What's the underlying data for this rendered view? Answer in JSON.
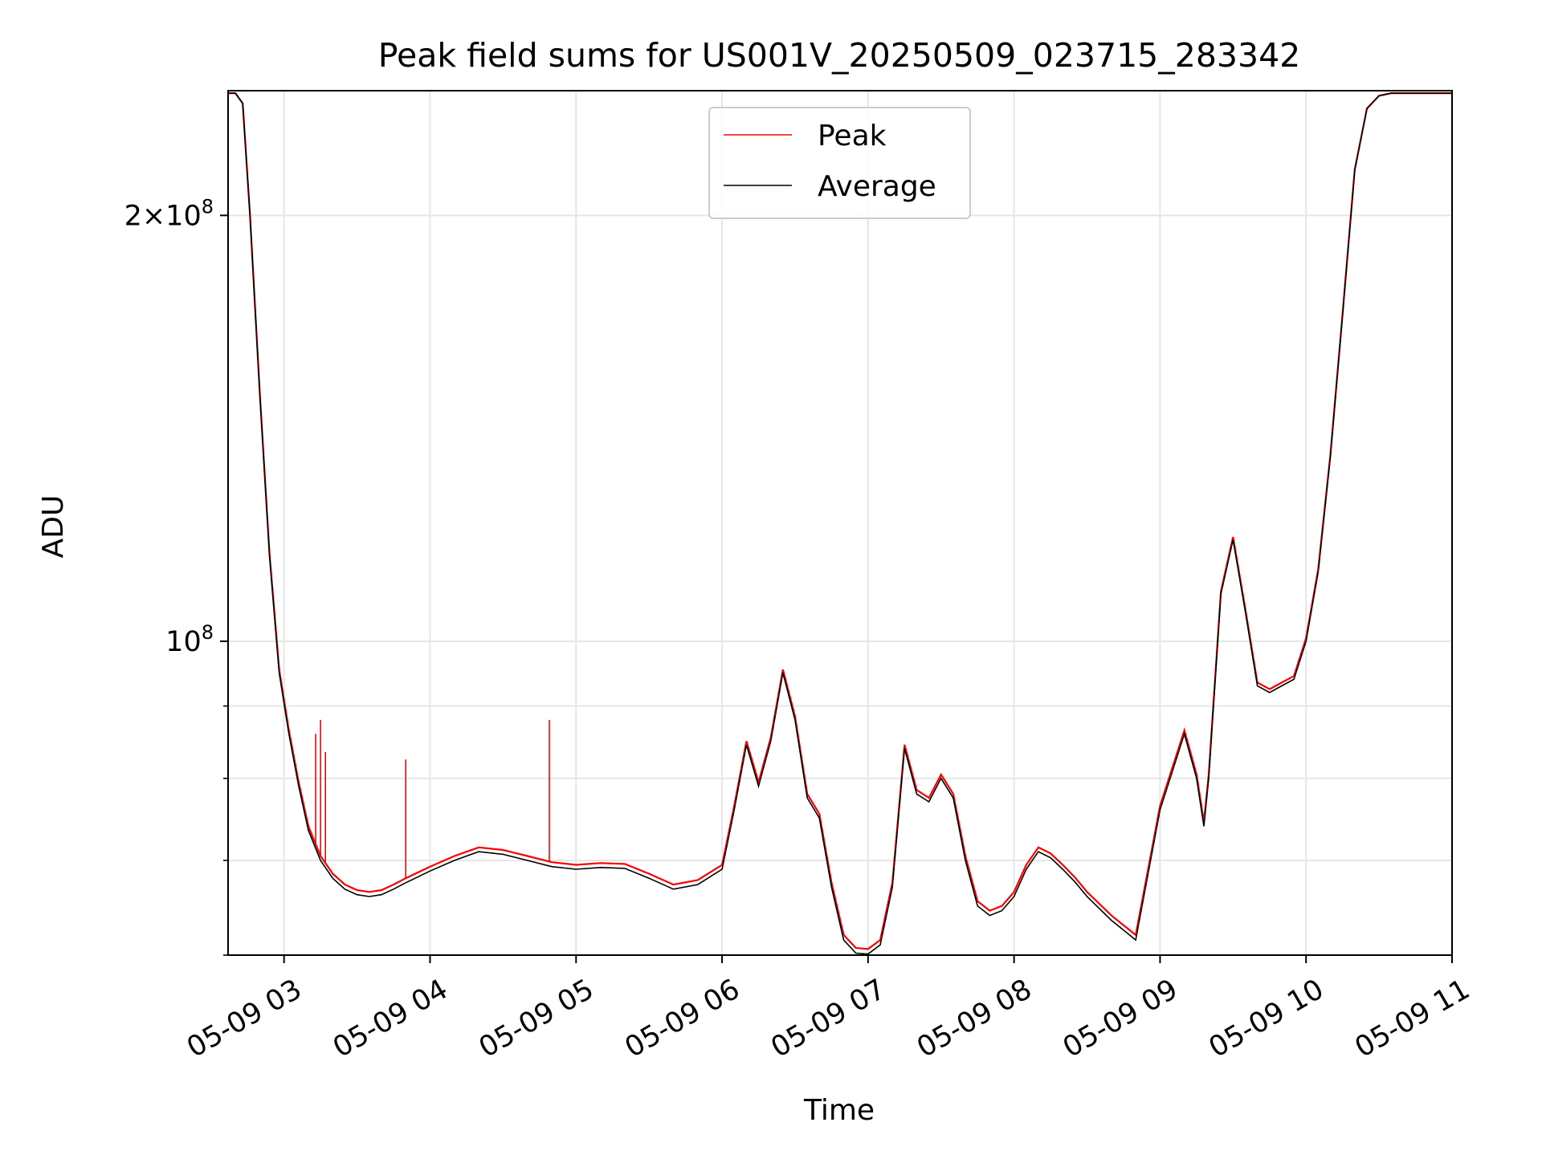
{
  "chart_data": {
    "type": "line",
    "title": "Peak field sums for US001V_20250509_023715_283342",
    "xlabel": "Time",
    "ylabel": "ADU",
    "x_axis": {
      "kind": "datetime",
      "range": [
        "2025-05-09 02:37",
        "2025-05-09 11:00"
      ],
      "ticks": [
        "2025-05-09 03:00",
        "2025-05-09 04:00",
        "2025-05-09 05:00",
        "2025-05-09 06:00",
        "2025-05-09 07:00",
        "2025-05-09 08:00",
        "2025-05-09 09:00",
        "2025-05-09 10:00",
        "2025-05-09 11:00"
      ],
      "tick_labels": [
        "05-09 03",
        "05-09 04",
        "05-09 05",
        "05-09 06",
        "05-09 07",
        "05-09 08",
        "05-09 09",
        "05-09 10",
        "05-09 11"
      ]
    },
    "y_axis": {
      "scale": "log",
      "range": [
        60000000,
        245000000
      ],
      "major_ticks": [
        100000000,
        200000000
      ],
      "major_labels": [
        "10^8",
        "2×10^8"
      ],
      "minor_ticks": [
        60000000,
        70000000,
        80000000,
        90000000
      ]
    },
    "grid": true,
    "legend": {
      "placement": "upper center",
      "entries": [
        "Peak",
        "Average"
      ]
    },
    "series": [
      {
        "name": "Average",
        "color": "#000000",
        "x": [
          "02:37",
          "02:40",
          "02:43",
          "02:46",
          "02:50",
          "02:54",
          "02:58",
          "03:02",
          "03:06",
          "03:10",
          "03:15",
          "03:20",
          "03:25",
          "03:30",
          "03:35",
          "03:40",
          "03:45",
          "03:50",
          "04:00",
          "04:10",
          "04:20",
          "04:30",
          "04:40",
          "04:50",
          "05:00",
          "05:10",
          "05:20",
          "05:30",
          "05:40",
          "05:50",
          "06:00",
          "06:05",
          "06:10",
          "06:15",
          "06:20",
          "06:25",
          "06:30",
          "06:35",
          "06:40",
          "06:45",
          "06:50",
          "06:55",
          "07:00",
          "07:05",
          "07:10",
          "07:15",
          "07:20",
          "07:25",
          "07:30",
          "07:35",
          "07:40",
          "07:45",
          "07:50",
          "07:55",
          "08:00",
          "08:05",
          "08:10",
          "08:15",
          "08:20",
          "08:25",
          "08:30",
          "08:40",
          "08:50",
          "09:00",
          "09:10",
          "09:15",
          "09:18",
          "09:20",
          "09:25",
          "09:30",
          "09:35",
          "09:40",
          "09:45",
          "09:50",
          "09:55",
          "10:00",
          "10:05",
          "10:10",
          "10:15",
          "10:20",
          "10:25",
          "10:30",
          "10:35",
          "10:40",
          "10:45",
          "10:50",
          "11:00"
        ],
        "y": [
          244000000,
          244000000,
          240000000,
          200000000,
          150000000,
          115000000,
          95000000,
          86000000,
          79000000,
          73500000,
          70000000,
          68000000,
          66800000,
          66200000,
          66000000,
          66200000,
          66800000,
          67500000,
          68800000,
          70000000,
          71000000,
          70700000,
          70000000,
          69300000,
          69000000,
          69200000,
          69100000,
          68000000,
          66800000,
          67300000,
          69000000,
          76000000,
          84500000,
          79000000,
          85000000,
          95000000,
          88000000,
          77500000,
          75000000,
          67000000,
          61500000,
          60200000,
          60100000,
          61000000,
          67000000,
          84000000,
          78000000,
          77000000,
          80000000,
          77500000,
          70000000,
          65000000,
          64000000,
          64500000,
          66000000,
          69000000,
          71000000,
          70300000,
          69000000,
          67600000,
          66000000,
          63500000,
          61500000,
          76000000,
          86000000,
          80000000,
          74000000,
          80000000,
          108000000,
          118000000,
          105000000,
          93000000,
          92000000,
          93000000,
          94000000,
          100000000,
          112000000,
          135000000,
          170000000,
          215000000,
          238000000,
          243000000,
          244000000,
          244000000,
          244000000,
          244000000,
          244000000
        ]
      },
      {
        "name": "Peak",
        "color": "#ff0000",
        "x": [
          "02:37",
          "02:40",
          "02:43",
          "02:46",
          "02:50",
          "02:54",
          "02:58",
          "03:02",
          "03:06",
          "03:10",
          "03:15",
          "03:20",
          "03:25",
          "03:30",
          "03:35",
          "03:40",
          "03:45",
          "03:50",
          "04:00",
          "04:10",
          "04:20",
          "04:30",
          "04:40",
          "04:50",
          "05:00",
          "05:10",
          "05:20",
          "05:30",
          "05:40",
          "05:50",
          "06:00",
          "06:05",
          "06:10",
          "06:15",
          "06:20",
          "06:25",
          "06:30",
          "06:35",
          "06:40",
          "06:45",
          "06:50",
          "06:55",
          "07:00",
          "07:05",
          "07:10",
          "07:15",
          "07:20",
          "07:25",
          "07:30",
          "07:35",
          "07:40",
          "07:45",
          "07:50",
          "07:55",
          "08:00",
          "08:05",
          "08:10",
          "08:15",
          "08:20",
          "08:25",
          "08:30",
          "08:40",
          "08:50",
          "09:00",
          "09:10",
          "09:15",
          "09:18",
          "09:20",
          "09:25",
          "09:30",
          "09:35",
          "09:40",
          "09:45",
          "09:50",
          "09:55",
          "10:00",
          "10:05",
          "10:10",
          "10:15",
          "10:20",
          "10:25",
          "10:30",
          "10:35",
          "10:40",
          "10:45",
          "10:50",
          "11:00"
        ],
        "y": [
          244000000,
          244000000,
          240000000,
          200000000,
          150000000,
          115500000,
          95500000,
          86500000,
          79500000,
          74000000,
          70500000,
          68500000,
          67300000,
          66700000,
          66500000,
          66700000,
          67300000,
          68000000,
          69300000,
          70500000,
          71500000,
          71200000,
          70500000,
          69800000,
          69500000,
          69700000,
          69600000,
          68500000,
          67300000,
          67800000,
          69500000,
          76500000,
          85000000,
          79500000,
          85500000,
          95500000,
          88500000,
          78000000,
          75500000,
          67500000,
          62000000,
          60700000,
          60600000,
          61500000,
          67500000,
          84500000,
          78500000,
          77500000,
          80500000,
          78000000,
          70500000,
          65500000,
          64500000,
          65000000,
          66500000,
          69500000,
          71500000,
          70800000,
          69500000,
          68100000,
          66500000,
          64000000,
          62000000,
          76500000,
          86500000,
          80500000,
          74500000,
          80500000,
          108500000,
          118500000,
          105500000,
          93500000,
          92500000,
          93500000,
          94500000,
          100500000,
          112500000,
          135500000,
          170500000,
          215500000,
          238000000,
          243000000,
          244000000,
          244000000,
          244000000,
          244000000,
          244000000
        ],
        "spikes": [
          {
            "x": "03:13",
            "y": 86000000
          },
          {
            "x": "03:15",
            "y": 88000000
          },
          {
            "x": "03:17",
            "y": 83500000
          },
          {
            "x": "03:50",
            "y": 82500000
          },
          {
            "x": "04:49",
            "y": 88000000
          }
        ]
      }
    ]
  }
}
